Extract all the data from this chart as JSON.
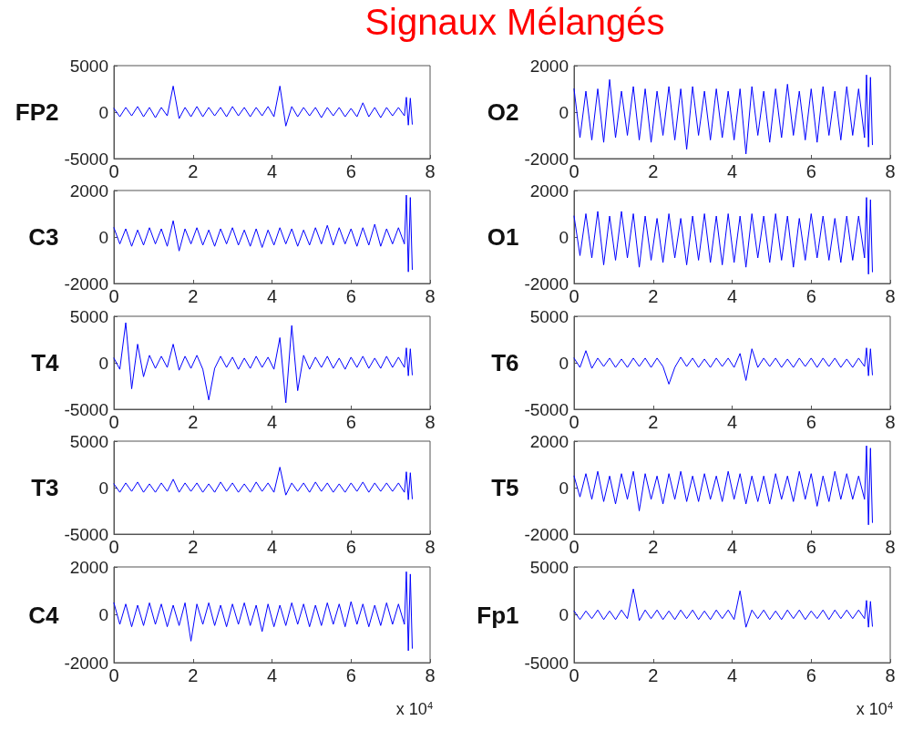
{
  "chart_data": [
    {
      "type": "line",
      "title": "Signaux Mélangés",
      "ylabel": "FP2",
      "xlim": [
        0,
        8
      ],
      "xticks": [
        0,
        2,
        4,
        6,
        8
      ],
      "ylim": [
        -5000,
        5000
      ],
      "yticks": [
        -5000,
        0,
        5000
      ],
      "grid": false,
      "marker": "none",
      "line_style": "solid",
      "x": [
        0,
        0.15,
        0.3,
        0.45,
        0.6,
        0.75,
        0.9,
        1.05,
        1.2,
        1.35,
        1.5,
        1.65,
        1.8,
        1.95,
        2.1,
        2.25,
        2.4,
        2.55,
        2.7,
        2.85,
        3,
        3.15,
        3.3,
        3.45,
        3.6,
        3.75,
        3.9,
        4.05,
        4.2,
        4.35,
        4.5,
        4.65,
        4.8,
        4.95,
        5.1,
        5.25,
        5.4,
        5.55,
        5.7,
        5.85,
        6,
        6.15,
        6.3,
        6.45,
        6.6,
        6.75,
        6.9,
        7.05,
        7.2,
        7.35,
        7.4,
        7.45,
        7.5,
        7.55
      ],
      "series": [
        {
          "color": "#0000ff",
          "values": [
            400,
            -500,
            500,
            -400,
            600,
            -500,
            500,
            -600,
            500,
            -400,
            2800,
            -700,
            500,
            -500,
            600,
            -500,
            500,
            -400,
            500,
            -500,
            600,
            -400,
            500,
            -500,
            500,
            -400,
            600,
            -500,
            2800,
            -1500,
            600,
            -500,
            500,
            -400,
            500,
            -600,
            500,
            -400,
            500,
            -500,
            400,
            -500,
            1000,
            -500,
            500,
            -600,
            500,
            -400,
            500,
            -400,
            1600,
            -1400,
            1500,
            -1300
          ]
        }
      ]
    },
    {
      "type": "line",
      "ylabel": "O2",
      "xlim": [
        0,
        8
      ],
      "xticks": [
        0,
        2,
        4,
        6,
        8
      ],
      "ylim": [
        -2000,
        2000
      ],
      "yticks": [
        -2000,
        0,
        2000
      ],
      "grid": false,
      "marker": "none",
      "line_style": "solid",
      "x": [
        0,
        0.15,
        0.3,
        0.45,
        0.6,
        0.75,
        0.9,
        1.05,
        1.2,
        1.35,
        1.5,
        1.65,
        1.8,
        1.95,
        2.1,
        2.25,
        2.4,
        2.55,
        2.7,
        2.85,
        3,
        3.15,
        3.3,
        3.45,
        3.6,
        3.75,
        3.9,
        4.05,
        4.2,
        4.35,
        4.5,
        4.65,
        4.8,
        4.95,
        5.1,
        5.25,
        5.4,
        5.55,
        5.7,
        5.85,
        6,
        6.15,
        6.3,
        6.45,
        6.6,
        6.75,
        6.9,
        7.05,
        7.2,
        7.35,
        7.4,
        7.45,
        7.5,
        7.55
      ],
      "series": [
        {
          "color": "#0000ff",
          "values": [
            1000,
            -1100,
            900,
            -1200,
            1000,
            -1300,
            1400,
            -1100,
            900,
            -1000,
            1100,
            -1200,
            1000,
            -1300,
            900,
            -1000,
            1100,
            -1200,
            1000,
            -1600,
            1100,
            -1000,
            900,
            -1200,
            1000,
            -1100,
            900,
            -1200,
            1000,
            -1800,
            1100,
            -1000,
            900,
            -1300,
            1000,
            -1100,
            1200,
            -1000,
            900,
            -1200,
            1000,
            -1300,
            1100,
            -1000,
            900,
            -1200,
            1100,
            -1000,
            1000,
            -1100,
            1600,
            -1500,
            1500,
            -1400
          ]
        }
      ]
    },
    {
      "type": "line",
      "ylabel": "C3",
      "xlim": [
        0,
        8
      ],
      "xticks": [
        0,
        2,
        4,
        6,
        8
      ],
      "ylim": [
        -2000,
        2000
      ],
      "yticks": [
        -2000,
        0,
        2000
      ],
      "grid": false,
      "marker": "none",
      "line_style": "solid",
      "x": [
        0,
        0.15,
        0.3,
        0.45,
        0.6,
        0.75,
        0.9,
        1.05,
        1.2,
        1.35,
        1.5,
        1.65,
        1.8,
        1.95,
        2.1,
        2.25,
        2.4,
        2.55,
        2.7,
        2.85,
        3,
        3.15,
        3.3,
        3.45,
        3.6,
        3.75,
        3.9,
        4.05,
        4.2,
        4.35,
        4.5,
        4.65,
        4.8,
        4.95,
        5.1,
        5.25,
        5.4,
        5.55,
        5.7,
        5.85,
        6,
        6.15,
        6.3,
        6.45,
        6.6,
        6.75,
        6.9,
        7.05,
        7.2,
        7.35,
        7.4,
        7.45,
        7.5,
        7.55
      ],
      "series": [
        {
          "color": "#0000ff",
          "values": [
            400,
            -300,
            350,
            -400,
            300,
            -350,
            400,
            -300,
            350,
            -400,
            700,
            -600,
            350,
            -300,
            400,
            -350,
            300,
            -400,
            350,
            -300,
            400,
            -350,
            300,
            -400,
            350,
            -450,
            300,
            -350,
            400,
            -300,
            350,
            -400,
            300,
            -350,
            400,
            -300,
            500,
            -350,
            400,
            -300,
            350,
            -400,
            400,
            -350,
            550,
            -400,
            350,
            -300,
            400,
            -300,
            1800,
            -1500,
            1700,
            -1400
          ]
        }
      ]
    },
    {
      "type": "line",
      "ylabel": "O1",
      "xlim": [
        0,
        8
      ],
      "xticks": [
        0,
        2,
        4,
        6,
        8
      ],
      "ylim": [
        -2000,
        2000
      ],
      "yticks": [
        -2000,
        0,
        2000
      ],
      "grid": false,
      "marker": "none",
      "line_style": "solid",
      "x": [
        0,
        0.15,
        0.3,
        0.45,
        0.6,
        0.75,
        0.9,
        1.05,
        1.2,
        1.35,
        1.5,
        1.65,
        1.8,
        1.95,
        2.1,
        2.25,
        2.4,
        2.55,
        2.7,
        2.85,
        3,
        3.15,
        3.3,
        3.45,
        3.6,
        3.75,
        3.9,
        4.05,
        4.2,
        4.35,
        4.5,
        4.65,
        4.8,
        4.95,
        5.1,
        5.25,
        5.4,
        5.55,
        5.7,
        5.85,
        6,
        6.15,
        6.3,
        6.45,
        6.6,
        6.75,
        6.9,
        7.05,
        7.2,
        7.35,
        7.4,
        7.45,
        7.5,
        7.55
      ],
      "series": [
        {
          "color": "#0000ff",
          "values": [
            900,
            -800,
            1000,
            -900,
            1100,
            -1200,
            900,
            -1000,
            1100,
            -900,
            1000,
            -1300,
            900,
            -1000,
            800,
            -1100,
            1000,
            -900,
            800,
            -1200,
            900,
            -1000,
            1000,
            -1100,
            900,
            -1200,
            1000,
            -1100,
            900,
            -1300,
            1000,
            -900,
            900,
            -1100,
            1000,
            -1000,
            900,
            -1300,
            800,
            -1000,
            1000,
            -900,
            900,
            -1000,
            800,
            -1100,
            900,
            -1000,
            900,
            -900,
            1700,
            -1600,
            1600,
            -1500
          ]
        }
      ]
    },
    {
      "type": "line",
      "ylabel": "T4",
      "xlim": [
        0,
        8
      ],
      "xticks": [
        0,
        2,
        4,
        6,
        8
      ],
      "ylim": [
        -5000,
        5000
      ],
      "yticks": [
        -5000,
        0,
        5000
      ],
      "grid": false,
      "marker": "none",
      "line_style": "solid",
      "x": [
        0,
        0.15,
        0.3,
        0.45,
        0.6,
        0.75,
        0.9,
        1.05,
        1.2,
        1.35,
        1.5,
        1.65,
        1.8,
        1.95,
        2.1,
        2.25,
        2.4,
        2.55,
        2.7,
        2.85,
        3,
        3.15,
        3.3,
        3.45,
        3.6,
        3.75,
        3.9,
        4.05,
        4.2,
        4.35,
        4.5,
        4.65,
        4.8,
        4.95,
        5.1,
        5.25,
        5.4,
        5.55,
        5.7,
        5.85,
        6,
        6.15,
        6.3,
        6.45,
        6.6,
        6.75,
        6.9,
        7.05,
        7.2,
        7.35,
        7.4,
        7.45,
        7.5,
        7.55
      ],
      "series": [
        {
          "color": "#0000ff",
          "values": [
            500,
            -700,
            4300,
            -2800,
            2000,
            -1500,
            800,
            -600,
            700,
            -500,
            2000,
            -800,
            700,
            -600,
            800,
            -700,
            -4000,
            -600,
            700,
            -500,
            600,
            -700,
            500,
            -600,
            700,
            -500,
            600,
            -700,
            2700,
            -4300,
            4000,
            -3000,
            800,
            -700,
            600,
            -500,
            700,
            -600,
            500,
            -700,
            600,
            -500,
            700,
            -600,
            500,
            -600,
            700,
            -500,
            600,
            -500,
            1600,
            -1400,
            1500,
            -1300
          ]
        }
      ]
    },
    {
      "type": "line",
      "ylabel": "T6",
      "xlim": [
        0,
        8
      ],
      "xticks": [
        0,
        2,
        4,
        6,
        8
      ],
      "ylim": [
        -5000,
        5000
      ],
      "yticks": [
        -5000,
        0,
        5000
      ],
      "grid": false,
      "marker": "none",
      "line_style": "solid",
      "x": [
        0,
        0.15,
        0.3,
        0.45,
        0.6,
        0.75,
        0.9,
        1.05,
        1.2,
        1.35,
        1.5,
        1.65,
        1.8,
        1.95,
        2.1,
        2.25,
        2.4,
        2.55,
        2.7,
        2.85,
        3,
        3.15,
        3.3,
        3.45,
        3.6,
        3.75,
        3.9,
        4.05,
        4.2,
        4.35,
        4.5,
        4.65,
        4.8,
        4.95,
        5.1,
        5.25,
        5.4,
        5.55,
        5.7,
        5.85,
        6,
        6.15,
        6.3,
        6.45,
        6.6,
        6.75,
        6.9,
        7.05,
        7.2,
        7.35,
        7.4,
        7.45,
        7.5,
        7.55
      ],
      "series": [
        {
          "color": "#0000ff",
          "values": [
            500,
            -500,
            1300,
            -600,
            500,
            -400,
            500,
            -500,
            400,
            -500,
            500,
            -400,
            500,
            -500,
            500,
            -400,
            -2300,
            -500,
            600,
            -400,
            500,
            -500,
            400,
            -500,
            500,
            -400,
            500,
            -500,
            1000,
            -1900,
            1500,
            -500,
            500,
            -400,
            500,
            -500,
            400,
            -500,
            500,
            -400,
            500,
            -500,
            500,
            -400,
            500,
            -500,
            400,
            -500,
            500,
            -400,
            1600,
            -1400,
            1500,
            -1300
          ]
        }
      ]
    },
    {
      "type": "line",
      "ylabel": "T3",
      "xlim": [
        0,
        8
      ],
      "xticks": [
        0,
        2,
        4,
        6,
        8
      ],
      "ylim": [
        -5000,
        5000
      ],
      "yticks": [
        -5000,
        0,
        5000
      ],
      "grid": false,
      "marker": "none",
      "line_style": "solid",
      "x": [
        0,
        0.15,
        0.3,
        0.45,
        0.6,
        0.75,
        0.9,
        1.05,
        1.2,
        1.35,
        1.5,
        1.65,
        1.8,
        1.95,
        2.1,
        2.25,
        2.4,
        2.55,
        2.7,
        2.85,
        3,
        3.15,
        3.3,
        3.45,
        3.6,
        3.75,
        3.9,
        4.05,
        4.2,
        4.35,
        4.5,
        4.65,
        4.8,
        4.95,
        5.1,
        5.25,
        5.4,
        5.55,
        5.7,
        5.85,
        6,
        6.15,
        6.3,
        6.45,
        6.6,
        6.75,
        6.9,
        7.05,
        7.2,
        7.35,
        7.4,
        7.45,
        7.5,
        7.55
      ],
      "series": [
        {
          "color": "#0000ff",
          "values": [
            400,
            -500,
            500,
            -400,
            600,
            -500,
            400,
            -500,
            500,
            -400,
            900,
            -500,
            500,
            -400,
            500,
            -500,
            400,
            -500,
            600,
            -400,
            500,
            -500,
            400,
            -500,
            600,
            -400,
            500,
            -500,
            2200,
            -800,
            500,
            -400,
            500,
            -500,
            600,
            -400,
            500,
            -500,
            400,
            -500,
            500,
            -400,
            600,
            -500,
            500,
            -400,
            500,
            -400,
            500,
            -500,
            1700,
            -1300,
            1600,
            -1200
          ]
        }
      ]
    },
    {
      "type": "line",
      "ylabel": "T5",
      "xlim": [
        0,
        8
      ],
      "xticks": [
        0,
        2,
        4,
        6,
        8
      ],
      "ylim": [
        -2000,
        2000
      ],
      "yticks": [
        -2000,
        0,
        2000
      ],
      "grid": false,
      "marker": "none",
      "line_style": "solid",
      "x": [
        0,
        0.15,
        0.3,
        0.45,
        0.6,
        0.75,
        0.9,
        1.05,
        1.2,
        1.35,
        1.5,
        1.65,
        1.8,
        1.95,
        2.1,
        2.25,
        2.4,
        2.55,
        2.7,
        2.85,
        3,
        3.15,
        3.3,
        3.45,
        3.6,
        3.75,
        3.9,
        4.05,
        4.2,
        4.35,
        4.5,
        4.65,
        4.8,
        4.95,
        5.1,
        5.25,
        5.4,
        5.55,
        5.7,
        5.85,
        6,
        6.15,
        6.3,
        6.45,
        6.6,
        6.75,
        6.9,
        7.05,
        7.2,
        7.35,
        7.4,
        7.45,
        7.5,
        7.55
      ],
      "series": [
        {
          "color": "#0000ff",
          "values": [
            500,
            -400,
            600,
            -500,
            700,
            -600,
            500,
            -700,
            600,
            -500,
            700,
            -1000,
            600,
            -500,
            500,
            -700,
            600,
            -500,
            700,
            -600,
            500,
            -600,
            600,
            -500,
            500,
            -600,
            700,
            -500,
            600,
            -700,
            500,
            -600,
            500,
            -700,
            600,
            -500,
            500,
            -600,
            700,
            -500,
            600,
            -800,
            500,
            -600,
            700,
            -500,
            600,
            -500,
            500,
            -500,
            1800,
            -1600,
            1700,
            -1500
          ]
        }
      ]
    },
    {
      "type": "line",
      "ylabel": "C4",
      "xlabel": "x 10$^{4}$",
      "xlim": [
        0,
        8
      ],
      "xticks": [
        0,
        2,
        4,
        6,
        8
      ],
      "ylim": [
        -2000,
        2000
      ],
      "yticks": [
        -2000,
        0,
        2000
      ],
      "grid": false,
      "marker": "none",
      "line_style": "solid",
      "x": [
        0,
        0.15,
        0.3,
        0.45,
        0.6,
        0.75,
        0.9,
        1.05,
        1.2,
        1.35,
        1.5,
        1.65,
        1.8,
        1.95,
        2.1,
        2.25,
        2.4,
        2.55,
        2.7,
        2.85,
        3,
        3.15,
        3.3,
        3.45,
        3.6,
        3.75,
        3.9,
        4.05,
        4.2,
        4.35,
        4.5,
        4.65,
        4.8,
        4.95,
        5.1,
        5.25,
        5.4,
        5.55,
        5.7,
        5.85,
        6,
        6.15,
        6.3,
        6.45,
        6.6,
        6.75,
        6.9,
        7.05,
        7.2,
        7.35,
        7.4,
        7.45,
        7.5,
        7.55
      ],
      "series": [
        {
          "color": "#0000ff",
          "values": [
            500,
            -400,
            450,
            -500,
            400,
            -450,
            500,
            -400,
            450,
            -500,
            400,
            -450,
            500,
            -1100,
            450,
            -400,
            500,
            -450,
            400,
            -500,
            450,
            -400,
            500,
            -450,
            400,
            -700,
            450,
            -500,
            400,
            -450,
            500,
            -400,
            450,
            -500,
            400,
            -450,
            500,
            -400,
            450,
            -500,
            550,
            -400,
            450,
            -500,
            400,
            -450,
            500,
            -400,
            450,
            -400,
            1800,
            -1500,
            1700,
            -1400
          ]
        }
      ]
    },
    {
      "type": "line",
      "ylabel": "Fp1",
      "xlabel": "x 10$^{4}$",
      "xlim": [
        0,
        8
      ],
      "xticks": [
        0,
        2,
        4,
        6,
        8
      ],
      "ylim": [
        -5000,
        5000
      ],
      "yticks": [
        -5000,
        0,
        5000
      ],
      "grid": false,
      "marker": "none",
      "line_style": "solid",
      "x": [
        0,
        0.15,
        0.3,
        0.45,
        0.6,
        0.75,
        0.9,
        1.05,
        1.2,
        1.35,
        1.5,
        1.65,
        1.8,
        1.95,
        2.1,
        2.25,
        2.4,
        2.55,
        2.7,
        2.85,
        3,
        3.15,
        3.3,
        3.45,
        3.6,
        3.75,
        3.9,
        4.05,
        4.2,
        4.35,
        4.5,
        4.65,
        4.8,
        4.95,
        5.1,
        5.25,
        5.4,
        5.55,
        5.7,
        5.85,
        6,
        6.15,
        6.3,
        6.45,
        6.6,
        6.75,
        6.9,
        7.05,
        7.2,
        7.35,
        7.4,
        7.45,
        7.5,
        7.55
      ],
      "series": [
        {
          "color": "#0000ff",
          "values": [
            400,
            -500,
            400,
            -400,
            500,
            -500,
            400,
            -500,
            500,
            -400,
            2700,
            -600,
            500,
            -400,
            500,
            -500,
            400,
            -500,
            500,
            -400,
            500,
            -500,
            400,
            -500,
            500,
            -400,
            500,
            -500,
            2500,
            -1300,
            500,
            -400,
            500,
            -500,
            400,
            -500,
            500,
            -400,
            500,
            -500,
            400,
            -400,
            500,
            -500,
            500,
            -400,
            500,
            -400,
            500,
            -400,
            1500,
            -1300,
            1400,
            -1200
          ]
        }
      ]
    }
  ]
}
